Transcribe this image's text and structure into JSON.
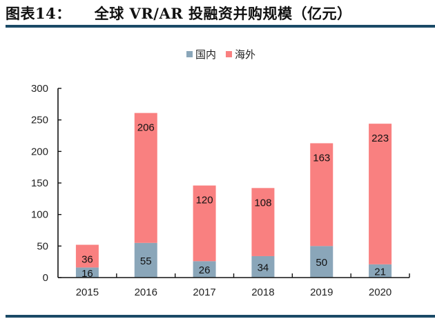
{
  "header": {
    "figure_number": "图表14：",
    "title": "全球 VR/AR 投融资并购规模（亿元）"
  },
  "colors": {
    "domestic": "#8aa6b9",
    "overseas": "#f98080",
    "rule": "#1a4a66",
    "axis": "#111111"
  },
  "chart_data": {
    "type": "bar",
    "stacked": true,
    "title": "全球 VR/AR 投融资并购规模（亿元）",
    "xlabel": "",
    "ylabel": "",
    "categories": [
      "2015",
      "2016",
      "2017",
      "2018",
      "2019",
      "2020"
    ],
    "series": [
      {
        "name": "国内",
        "values": [
          16,
          55,
          26,
          34,
          50,
          21
        ]
      },
      {
        "name": "海外",
        "values": [
          36,
          206,
          120,
          108,
          163,
          223
        ]
      }
    ],
    "ylim": [
      0,
      300
    ],
    "yticks": [
      "0",
      "50",
      "100",
      "150",
      "200",
      "250",
      "300"
    ],
    "legend_position": "top-center",
    "grid": false
  }
}
